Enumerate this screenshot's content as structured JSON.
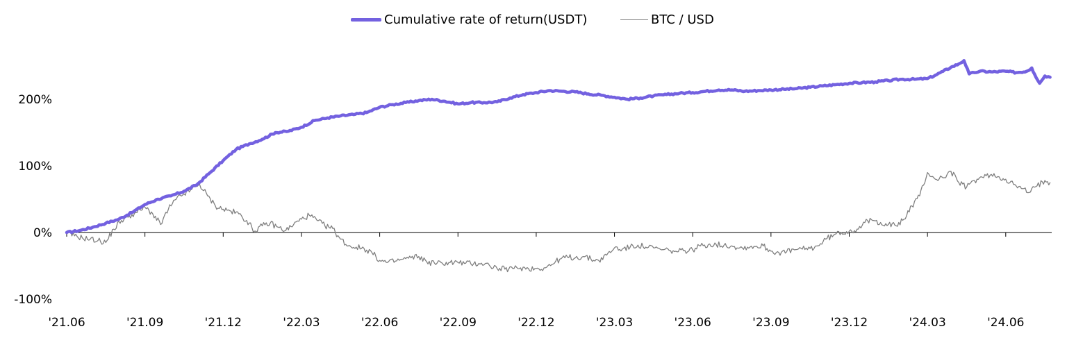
{
  "chart_data": {
    "type": "line",
    "title": "",
    "xlabel": "",
    "ylabel": "",
    "ylim": [
      -100,
      270
    ],
    "y_ticks": [
      "-100%",
      "0%",
      "100%",
      "200%"
    ],
    "y_tick_values": [
      -100,
      0,
      100,
      200
    ],
    "x_tick_labels": [
      "'21.06",
      "'21.09",
      "'21.12",
      "'22.03",
      "'22.06",
      "'22.09",
      "'22.12",
      "'23.03",
      "'23.06",
      "'23.09",
      "'23.12",
      "'24.03",
      "'24.06"
    ],
    "x_tick_values": [
      0,
      3,
      6,
      9,
      12,
      15,
      18,
      21,
      24,
      27,
      30,
      33,
      36
    ],
    "x_range": [
      0,
      37.7
    ],
    "grid": false,
    "legend_position": "top-center",
    "series": [
      {
        "name": "Cumulative rate of return(USDT)",
        "color": "#7361e0",
        "x": [
          0,
          0.5,
          1,
          1.5,
          2,
          2.5,
          3,
          3.5,
          4,
          4.5,
          5,
          5.5,
          6,
          6.5,
          7,
          7.5,
          8,
          8.5,
          9,
          9.5,
          10,
          10.5,
          11,
          11.5,
          12,
          12.5,
          13,
          13.5,
          14,
          14.5,
          15,
          15.5,
          16,
          16.5,
          17,
          17.5,
          18,
          18.5,
          19,
          19.5,
          20,
          20.5,
          21,
          21.5,
          22,
          22.5,
          23,
          23.5,
          24,
          24.5,
          25,
          25.5,
          26,
          26.5,
          27,
          27.5,
          28,
          28.5,
          29,
          29.5,
          30,
          30.5,
          31,
          31.5,
          32,
          32.5,
          33,
          33.3,
          33.6,
          33.9,
          34.2,
          34.4,
          34.6,
          34.8,
          35,
          35.5,
          36,
          36.4,
          36.8,
          37,
          37.1,
          37.3,
          37.5,
          37.7
        ],
        "y": [
          0,
          3,
          8,
          14,
          20,
          30,
          42,
          50,
          55,
          62,
          72,
          90,
          108,
          125,
          133,
          140,
          150,
          152,
          158,
          168,
          172,
          175,
          177,
          180,
          188,
          192,
          195,
          198,
          200,
          197,
          193,
          195,
          195,
          196,
          202,
          207,
          210,
          213,
          212,
          211,
          208,
          206,
          203,
          200,
          202,
          205,
          207,
          209,
          210,
          212,
          214,
          214,
          212,
          213,
          214,
          215,
          216,
          218,
          220,
          222,
          224,
          225,
          226,
          228,
          230,
          230,
          231,
          236,
          242,
          248,
          253,
          258,
          238,
          240,
          242,
          241,
          242,
          240,
          242,
          247,
          238,
          224,
          235,
          233
        ]
      },
      {
        "name": "BTC / USD",
        "color": "#7f7f7f",
        "x": [
          0,
          0.3,
          0.6,
          0.9,
          1.2,
          1.5,
          1.8,
          2.1,
          2.4,
          2.7,
          3,
          3.3,
          3.6,
          3.9,
          4.2,
          4.5,
          4.8,
          5.1,
          5.4,
          5.7,
          6,
          6.3,
          6.6,
          6.9,
          7.2,
          7.5,
          7.8,
          8.1,
          8.4,
          8.7,
          9,
          9.3,
          9.6,
          9.9,
          10.2,
          10.5,
          10.8,
          11.1,
          11.4,
          11.7,
          12,
          12.3,
          12.6,
          12.9,
          13.2,
          13.5,
          13.8,
          14.1,
          14.4,
          14.7,
          15,
          15.3,
          15.6,
          15.9,
          16.2,
          16.5,
          16.8,
          17.1,
          17.4,
          17.7,
          18,
          18.3,
          18.6,
          18.9,
          19.2,
          19.5,
          19.8,
          20.1,
          20.4,
          20.7,
          21,
          21.3,
          21.6,
          21.9,
          22.2,
          22.5,
          22.8,
          23.1,
          23.4,
          23.7,
          24,
          24.3,
          24.6,
          24.9,
          25.2,
          25.5,
          25.8,
          26.1,
          26.4,
          26.7,
          27,
          27.3,
          27.6,
          27.9,
          28.2,
          28.5,
          28.8,
          29.1,
          29.4,
          29.7,
          30,
          30.3,
          30.6,
          30.9,
          31.2,
          31.5,
          31.8,
          32.1,
          32.4,
          32.7,
          33,
          33.3,
          33.6,
          33.9,
          34.2,
          34.5,
          34.8,
          35.1,
          35.4,
          35.7,
          36,
          36.3,
          36.6,
          36.9,
          37.2,
          37.5,
          37.7
        ],
        "y": [
          0,
          -5,
          -8,
          -10,
          -12,
          -15,
          5,
          18,
          25,
          30,
          38,
          28,
          12,
          35,
          50,
          58,
          65,
          72,
          55,
          40,
          35,
          32,
          28,
          18,
          2,
          10,
          14,
          8,
          3,
          12,
          20,
          26,
          18,
          10,
          6,
          -10,
          -20,
          -22,
          -24,
          -30,
          -42,
          -45,
          -43,
          -40,
          -38,
          -36,
          -44,
          -46,
          -46,
          -45,
          -45,
          -46,
          -47,
          -46,
          -49,
          -54,
          -55,
          -54,
          -53,
          -54,
          -54,
          -53,
          -48,
          -40,
          -37,
          -38,
          -36,
          -40,
          -42,
          -34,
          -23,
          -25,
          -22,
          -19,
          -22,
          -23,
          -26,
          -27,
          -29,
          -27,
          -26,
          -20,
          -18,
          -18,
          -19,
          -20,
          -23,
          -22,
          -21,
          -20,
          -28,
          -30,
          -29,
          -26,
          -25,
          -24,
          -20,
          -10,
          -4,
          0,
          2,
          5,
          15,
          18,
          15,
          12,
          10,
          20,
          40,
          55,
          90,
          80,
          82,
          92,
          75,
          68,
          78,
          83,
          86,
          84,
          80,
          72,
          66,
          60,
          70,
          78,
          75
        ]
      }
    ]
  }
}
